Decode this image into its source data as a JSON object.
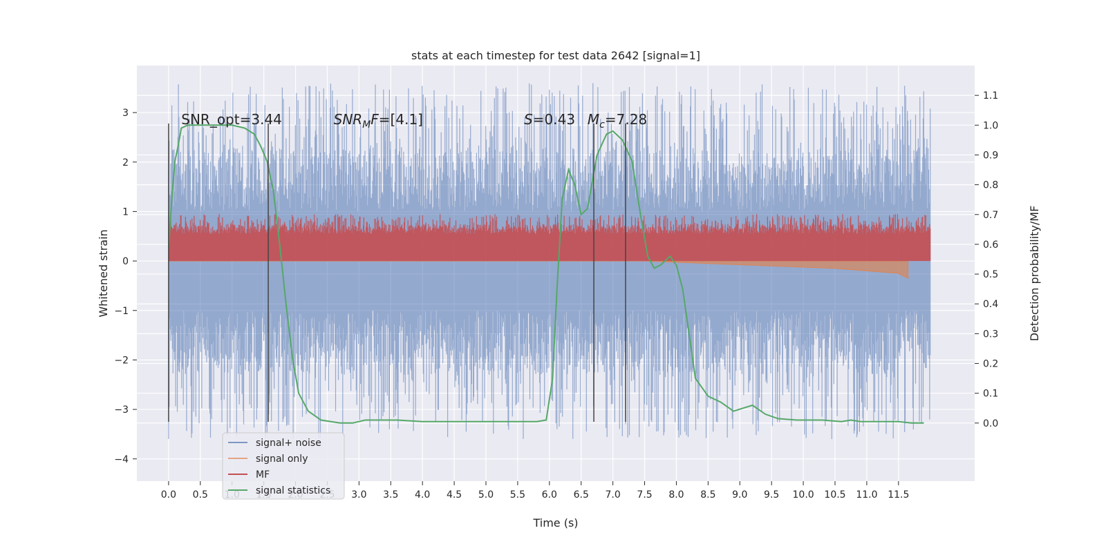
{
  "chart_data": {
    "type": "line",
    "title": "stats at each timestep for test data 2642 [signal=1]",
    "xlabel": "Time (s)",
    "ylabel": "Whitened strain",
    "y2label": "Detection probability/MF",
    "xlim": [
      -0.5,
      12.7
    ],
    "ylim": [
      -4.45,
      3.95
    ],
    "y2lim": [
      -0.195,
      1.2
    ],
    "grid": true,
    "legend_position": "lower-left",
    "xticks": [
      "0.0",
      "0.5",
      "1.0",
      "1.5",
      "2.0",
      "2.5",
      "3.0",
      "3.5",
      "4.0",
      "4.5",
      "5.0",
      "5.5",
      "6.0",
      "6.5",
      "7.0",
      "7.5",
      "8.0",
      "8.5",
      "9.0",
      "9.5",
      "10.0",
      "10.5",
      "11.0",
      "11.5"
    ],
    "yticks": [
      "−4",
      "−3",
      "−2",
      "−1",
      "0",
      "1",
      "2",
      "3"
    ],
    "y2ticks": [
      "0.0",
      "0.1",
      "0.2",
      "0.3",
      "0.4",
      "0.5",
      "0.6",
      "0.7",
      "0.8",
      "0.9",
      "1.0",
      "1.1"
    ],
    "annotations": [
      {
        "text": "SNR_opt=3.44",
        "x": 0.2
      },
      {
        "text": "SNR_MF=[4.1]",
        "x": 2.6
      },
      {
        "text": "S=0.43",
        "x": 5.6
      },
      {
        "text": "M_c=7.28",
        "x": 6.6
      }
    ],
    "vertical_lines": [
      0.0,
      1.57,
      6.7,
      7.2
    ],
    "vertical_lines_range": [
      -3.25,
      2.78
    ],
    "colors": {
      "signal_noise": "#4c72b0",
      "signal_only": "#dd8452",
      "mf": "#c44e52",
      "stats": "#55a868",
      "vline": "#444444",
      "background": "#eaeaf2",
      "grid": "#ffffff"
    },
    "series": [
      {
        "name": "signal+ noise",
        "axis": "left",
        "kind": "noise_band",
        "t_range": [
          0,
          12.0
        ],
        "core_band": [
          -1.0,
          1.0
        ],
        "extreme_band": [
          -3.6,
          3.6
        ]
      },
      {
        "name": "signal only",
        "axis": "left",
        "x": [
          0,
          7.5,
          8.5,
          9.5,
          10.5,
          11.0,
          11.5,
          11.65
        ],
        "y": [
          0.0,
          0.0,
          -0.05,
          -0.1,
          -0.15,
          -0.2,
          -0.25,
          -0.35
        ]
      },
      {
        "name": "MF",
        "axis": "left",
        "kind": "noise_band",
        "t_range": [
          0,
          12.0
        ],
        "core_band": [
          0.0,
          0.55
        ],
        "extreme_band": [
          0.0,
          0.95
        ]
      },
      {
        "name": "signal statistics",
        "axis": "right",
        "x": [
          0.0,
          0.05,
          0.1,
          0.15,
          0.2,
          0.3,
          0.5,
          1.0,
          1.2,
          1.35,
          1.45,
          1.55,
          1.65,
          1.75,
          1.85,
          1.95,
          2.05,
          2.2,
          2.4,
          2.7,
          2.9,
          3.1,
          3.3,
          3.6,
          4.0,
          4.5,
          5.0,
          5.5,
          5.8,
          5.95,
          6.05,
          6.12,
          6.2,
          6.3,
          6.4,
          6.5,
          6.6,
          6.75,
          6.9,
          7.0,
          7.15,
          7.3,
          7.45,
          7.55,
          7.65,
          7.75,
          7.9,
          8.0,
          8.1,
          8.2,
          8.3,
          8.5,
          8.7,
          8.9,
          9.05,
          9.2,
          9.4,
          9.6,
          9.9,
          10.0,
          10.3,
          10.6,
          10.75,
          10.9,
          11.2,
          11.5,
          11.7,
          11.9
        ],
        "y": [
          0.59,
          0.75,
          0.88,
          0.93,
          0.99,
          1.0,
          1.0,
          1.0,
          0.99,
          0.97,
          0.93,
          0.88,
          0.78,
          0.6,
          0.4,
          0.22,
          0.1,
          0.04,
          0.01,
          0.0,
          0.0,
          0.01,
          0.01,
          0.01,
          0.005,
          0.005,
          0.005,
          0.005,
          0.005,
          0.01,
          0.15,
          0.45,
          0.75,
          0.85,
          0.8,
          0.7,
          0.72,
          0.9,
          0.97,
          0.98,
          0.95,
          0.88,
          0.68,
          0.56,
          0.52,
          0.53,
          0.56,
          0.53,
          0.45,
          0.3,
          0.15,
          0.09,
          0.07,
          0.04,
          0.05,
          0.06,
          0.03,
          0.015,
          0.01,
          0.01,
          0.01,
          0.005,
          0.01,
          0.005,
          0.005,
          0.005,
          0.0,
          0.0
        ]
      }
    ]
  }
}
